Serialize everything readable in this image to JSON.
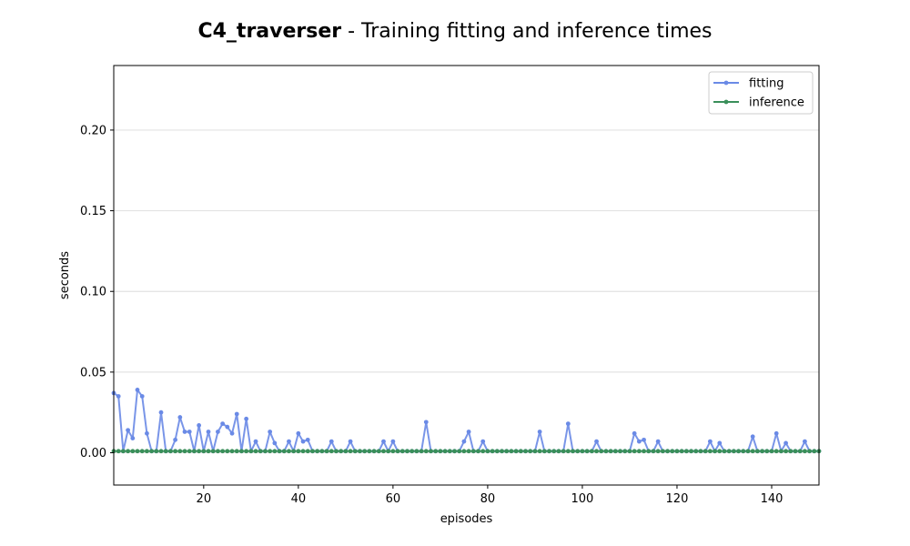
{
  "title": {
    "bold": "C4_traverser",
    "rest": " - Training fitting and inference times"
  },
  "chart_data": {
    "type": "line",
    "xlabel": "episodes",
    "ylabel": "seconds",
    "xlim": [
      1,
      150
    ],
    "ylim": [
      -0.02,
      0.24
    ],
    "xticks": [
      20,
      40,
      60,
      80,
      100,
      120,
      140
    ],
    "yticks": [
      0.0,
      0.05,
      0.1,
      0.15,
      0.2
    ],
    "ytick_labels": [
      "0.00",
      "0.05",
      "0.10",
      "0.15",
      "0.20"
    ],
    "grid": "horizontal",
    "legend_position": "top-right",
    "series": [
      {
        "name": "fitting",
        "color": "#6a8ae6",
        "x": [
          1,
          2,
          3,
          4,
          5,
          6,
          7,
          8,
          9,
          10,
          11,
          12,
          13,
          14,
          15,
          16,
          17,
          18,
          19,
          20,
          21,
          22,
          23,
          24,
          25,
          26,
          27,
          28,
          29,
          30,
          31,
          32,
          33,
          34,
          35,
          36,
          37,
          38,
          39,
          40,
          41,
          42,
          43,
          44,
          45,
          46,
          47,
          48,
          49,
          50,
          51,
          52,
          53,
          54,
          55,
          56,
          57,
          58,
          59,
          60,
          61,
          62,
          63,
          64,
          65,
          66,
          67,
          68,
          69,
          70,
          71,
          72,
          73,
          74,
          75,
          76,
          77,
          78,
          79,
          80,
          81,
          82,
          83,
          84,
          85,
          86,
          87,
          88,
          89,
          90,
          91,
          92,
          93,
          94,
          95,
          96,
          97,
          98,
          99,
          100,
          101,
          102,
          103,
          104,
          105,
          106,
          107,
          108,
          109,
          110,
          111,
          112,
          113,
          114,
          115,
          116,
          117,
          118,
          119,
          120,
          121,
          122,
          123,
          124,
          125,
          126,
          127,
          128,
          129,
          130,
          131,
          132,
          133,
          134,
          135,
          136,
          137,
          138,
          139,
          140,
          141,
          142,
          143,
          144,
          145,
          146,
          147,
          148,
          149,
          150
        ],
        "values": [
          0.037,
          0.035,
          0.001,
          0.014,
          0.009,
          0.039,
          0.035,
          0.012,
          0.001,
          0.001,
          0.025,
          0.001,
          0.001,
          0.008,
          0.022,
          0.013,
          0.013,
          0.001,
          0.017,
          0.001,
          0.013,
          0.001,
          0.013,
          0.018,
          0.016,
          0.012,
          0.024,
          0.001,
          0.021,
          0.001,
          0.007,
          0.001,
          0.001,
          0.013,
          0.006,
          0.001,
          0.001,
          0.007,
          0.001,
          0.012,
          0.007,
          0.008,
          0.001,
          0.001,
          0.001,
          0.001,
          0.007,
          0.001,
          0.001,
          0.001,
          0.007,
          0.001,
          0.001,
          0.001,
          0.001,
          0.001,
          0.001,
          0.007,
          0.001,
          0.007,
          0.001,
          0.001,
          0.001,
          0.001,
          0.001,
          0.001,
          0.019,
          0.001,
          0.001,
          0.001,
          0.001,
          0.001,
          0.001,
          0.001,
          0.007,
          0.013,
          0.001,
          0.001,
          0.007,
          0.001,
          0.001,
          0.001,
          0.001,
          0.001,
          0.001,
          0.001,
          0.001,
          0.001,
          0.001,
          0.001,
          0.013,
          0.001,
          0.001,
          0.001,
          0.001,
          0.001,
          0.018,
          0.001,
          0.001,
          0.001,
          0.001,
          0.001,
          0.007,
          0.001,
          0.001,
          0.001,
          0.001,
          0.001,
          0.001,
          0.001,
          0.012,
          0.007,
          0.008,
          0.001,
          0.001,
          0.007,
          0.001,
          0.001,
          0.001,
          0.001,
          0.001,
          0.001,
          0.001,
          0.001,
          0.001,
          0.001,
          0.007,
          0.001,
          0.006,
          0.001,
          0.001,
          0.001,
          0.001,
          0.001,
          0.001,
          0.01,
          0.001,
          0.001,
          0.001,
          0.001,
          0.012,
          0.001,
          0.006,
          0.001,
          0.001,
          0.001,
          0.007,
          0.001,
          0.001,
          0.001
        ]
      },
      {
        "name": "inference",
        "color": "#3a8f5a",
        "x": [
          1,
          2,
          3,
          4,
          5,
          6,
          7,
          8,
          9,
          10,
          11,
          12,
          13,
          14,
          15,
          16,
          17,
          18,
          19,
          20,
          21,
          22,
          23,
          24,
          25,
          26,
          27,
          28,
          29,
          30,
          31,
          32,
          33,
          34,
          35,
          36,
          37,
          38,
          39,
          40,
          41,
          42,
          43,
          44,
          45,
          46,
          47,
          48,
          49,
          50,
          51,
          52,
          53,
          54,
          55,
          56,
          57,
          58,
          59,
          60,
          61,
          62,
          63,
          64,
          65,
          66,
          67,
          68,
          69,
          70,
          71,
          72,
          73,
          74,
          75,
          76,
          77,
          78,
          79,
          80,
          81,
          82,
          83,
          84,
          85,
          86,
          87,
          88,
          89,
          90,
          91,
          92,
          93,
          94,
          95,
          96,
          97,
          98,
          99,
          100,
          101,
          102,
          103,
          104,
          105,
          106,
          107,
          108,
          109,
          110,
          111,
          112,
          113,
          114,
          115,
          116,
          117,
          118,
          119,
          120,
          121,
          122,
          123,
          124,
          125,
          126,
          127,
          128,
          129,
          130,
          131,
          132,
          133,
          134,
          135,
          136,
          137,
          138,
          139,
          140,
          141,
          142,
          143,
          144,
          145,
          146,
          147,
          148,
          149,
          150
        ],
        "values": [
          0.001,
          0.001,
          0.001,
          0.001,
          0.001,
          0.001,
          0.001,
          0.001,
          0.001,
          0.001,
          0.001,
          0.001,
          0.001,
          0.001,
          0.001,
          0.001,
          0.001,
          0.001,
          0.001,
          0.001,
          0.001,
          0.001,
          0.001,
          0.001,
          0.001,
          0.001,
          0.001,
          0.001,
          0.001,
          0.001,
          0.001,
          0.001,
          0.001,
          0.001,
          0.001,
          0.001,
          0.001,
          0.001,
          0.001,
          0.001,
          0.001,
          0.001,
          0.001,
          0.001,
          0.001,
          0.001,
          0.001,
          0.001,
          0.001,
          0.001,
          0.001,
          0.001,
          0.001,
          0.001,
          0.001,
          0.001,
          0.001,
          0.001,
          0.001,
          0.001,
          0.001,
          0.001,
          0.001,
          0.001,
          0.001,
          0.001,
          0.001,
          0.001,
          0.001,
          0.001,
          0.001,
          0.001,
          0.001,
          0.001,
          0.001,
          0.001,
          0.001,
          0.001,
          0.001,
          0.001,
          0.001,
          0.001,
          0.001,
          0.001,
          0.001,
          0.001,
          0.001,
          0.001,
          0.001,
          0.001,
          0.001,
          0.001,
          0.001,
          0.001,
          0.001,
          0.001,
          0.001,
          0.001,
          0.001,
          0.001,
          0.001,
          0.001,
          0.001,
          0.001,
          0.001,
          0.001,
          0.001,
          0.001,
          0.001,
          0.001,
          0.001,
          0.001,
          0.001,
          0.001,
          0.001,
          0.001,
          0.001,
          0.001,
          0.001,
          0.001,
          0.001,
          0.001,
          0.001,
          0.001,
          0.001,
          0.001,
          0.001,
          0.001,
          0.001,
          0.001,
          0.001,
          0.001,
          0.001,
          0.001,
          0.001,
          0.001,
          0.001,
          0.001,
          0.001,
          0.001,
          0.001,
          0.001,
          0.001,
          0.001,
          0.001,
          0.001,
          0.001,
          0.001,
          0.001,
          0.001
        ]
      }
    ]
  }
}
